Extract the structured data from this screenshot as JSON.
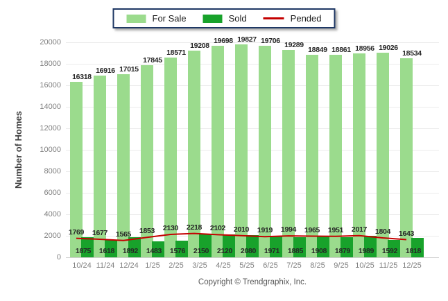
{
  "legend": {
    "items": [
      {
        "label": "For Sale",
        "swatch": "bar"
      },
      {
        "label": "Sold",
        "swatch": "bar"
      },
      {
        "label": "Pended",
        "swatch": "line"
      }
    ]
  },
  "colors": {
    "for_sale": "#9BDB8D",
    "sold": "#18A22B",
    "pended": "#C40000",
    "legend_border": "#1F3864",
    "grid": "#EAEAEA",
    "axis_text": "#808080",
    "value_text": "#262626"
  },
  "footer": {
    "text": "Copyright © Trendgraphix, Inc."
  },
  "chart_data": {
    "type": "bar",
    "title": "",
    "xlabel": "",
    "ylabel": "Number of Homes",
    "ylim": [
      0,
      20000
    ],
    "ytick_step": 2000,
    "grid": true,
    "legend_position": "top",
    "categories": [
      "10/24",
      "11/24",
      "12/24",
      "1/25",
      "2/25",
      "3/25",
      "4/25",
      "5/25",
      "6/25",
      "7/25",
      "8/25",
      "9/25",
      "10/25",
      "11/25",
      "12/25"
    ],
    "series": [
      {
        "name": "For Sale",
        "type": "bar",
        "color": "#9BDB8D",
        "values": [
          16318,
          16916,
          17015,
          17845,
          18571,
          19208,
          19698,
          19827,
          19706,
          19289,
          18849,
          18861,
          18956,
          19026,
          18534
        ]
      },
      {
        "name": "Sold",
        "type": "bar",
        "color": "#18A22B",
        "values": [
          1875,
          1618,
          1892,
          1483,
          1576,
          2150,
          2120,
          2080,
          1971,
          1885,
          1908,
          1879,
          1989,
          1592,
          1818
        ]
      },
      {
        "name": "Pended",
        "type": "line",
        "color": "#C40000",
        "values": [
          1769,
          1677,
          1565,
          1853,
          2130,
          2218,
          2102,
          2010,
          1919,
          1994,
          1965,
          1951,
          2017,
          1804,
          1643
        ]
      }
    ]
  }
}
